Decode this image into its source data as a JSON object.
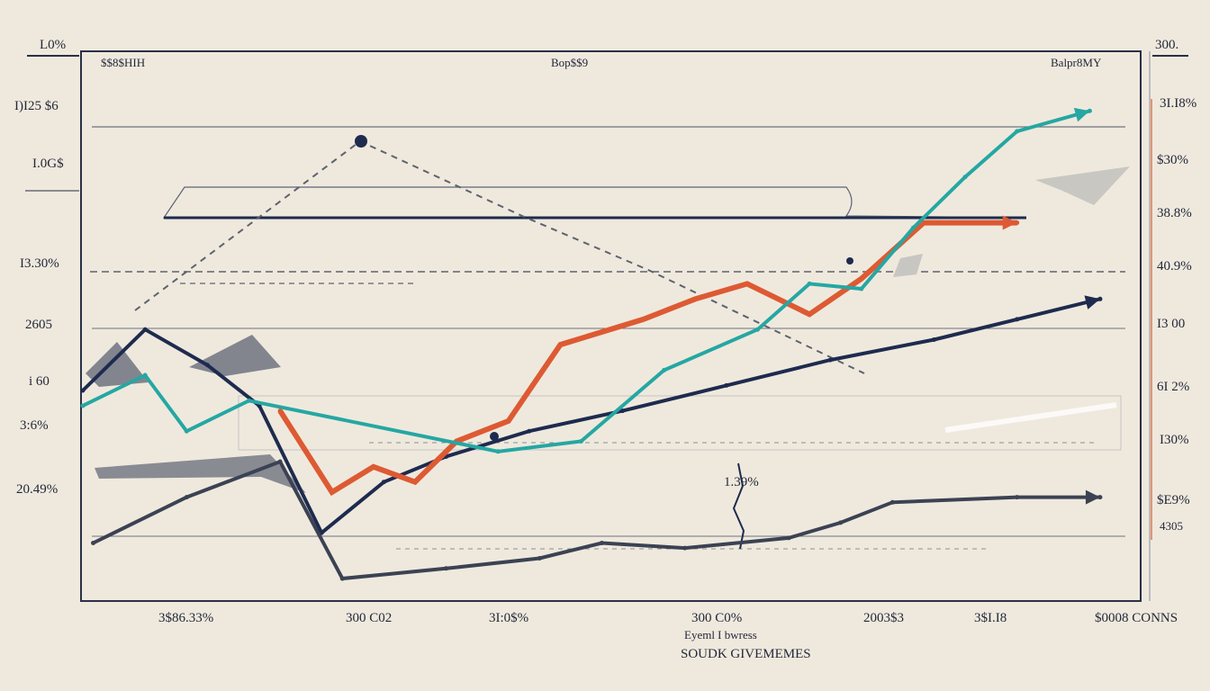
{
  "chart_data": {
    "type": "line",
    "corner_labels": {
      "top_left": "L0%",
      "top_right": "300."
    },
    "header_labels": [
      "$$8$HIH",
      "Bop$$9",
      "Balpr8MY"
    ],
    "y_left_ticks": [
      "I)I25 $6",
      "I.0G$",
      "I3.30%",
      "2605",
      "i 60",
      "3:6%",
      "20.49%"
    ],
    "y_right_ticks": [
      "3I.I8%",
      "$30%",
      "38.8%",
      "40.9%",
      "I3 00",
      "6I 2%",
      "I30%",
      "$E9%",
      "4305"
    ],
    "x_ticks": [
      "3$86.33%",
      "300 C02",
      "3I:0$%",
      "300 C0%",
      "2003$3",
      "3$I.I8",
      "$0008 CONNS"
    ],
    "x_label_line1": "Eyeml I bwress",
    "x_label_line2": "SOUDK GIVEMEMES",
    "inline_label": "1.39%",
    "colors": {
      "navy": "#1e2b4f",
      "orange": "#dd5a33",
      "teal": "#25a7a3",
      "slate": "#3b4253",
      "grey": "#8a8f98",
      "frame": "#2a3046",
      "background": "#efe9dd"
    },
    "xlim": [
      0,
      100
    ],
    "ylim": [
      0,
      100
    ],
    "series": [
      {
        "color": "navy",
        "x": [
          0,
          6,
          12,
          17,
          23,
          29,
          35,
          43,
          52,
          62,
          72,
          82,
          90,
          98
        ],
        "y": [
          40,
          52,
          45,
          37,
          12,
          22,
          27,
          32,
          36,
          41,
          46,
          50,
          54,
          58
        ]
      },
      {
        "color": "orange",
        "x": [
          19,
          24,
          28,
          32,
          36,
          41,
          46,
          54,
          59,
          64,
          70,
          75,
          81,
          90
        ],
        "y": [
          36,
          20,
          25,
          22,
          30,
          34,
          49,
          54,
          58,
          61,
          55,
          62,
          73,
          73
        ]
      },
      {
        "color": "teal",
        "x": [
          0,
          6,
          10,
          16,
          40,
          48,
          56,
          65,
          70,
          75,
          80,
          85,
          90,
          97
        ],
        "y": [
          37,
          43,
          32,
          38,
          28,
          30,
          44,
          52,
          61,
          60,
          72,
          82,
          91,
          95
        ]
      },
      {
        "color": "slate",
        "x": [
          1,
          10,
          19,
          25,
          35,
          44,
          50,
          58,
          68,
          73,
          78,
          90,
          98
        ],
        "y": [
          10,
          19,
          26,
          3,
          5,
          7,
          10,
          9,
          11,
          14,
          18,
          19,
          19
        ]
      }
    ]
  }
}
